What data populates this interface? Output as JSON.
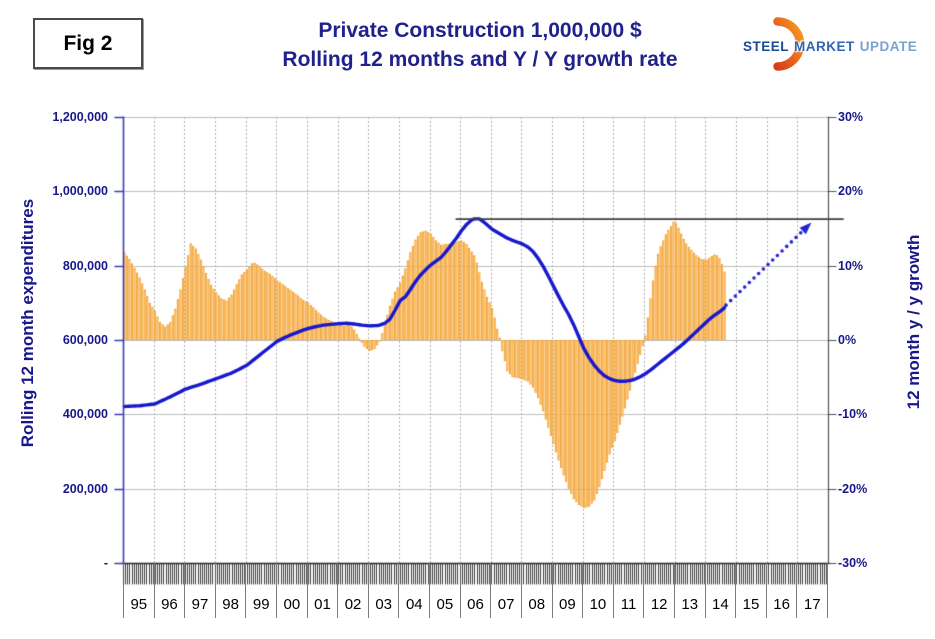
{
  "fig_label": "Fig 2",
  "title": {
    "line1": "Private Construction 1,000,000 $",
    "line2": "Rolling 12 months and Y / Y growth rate"
  },
  "logo": {
    "word1": "STEEL",
    "word2": "MARKET",
    "word3": "UPDATE",
    "crescent_color_top": "#f89b1d",
    "crescent_color_bottom": "#d93c1e"
  },
  "colors": {
    "title_text": "#21218E",
    "axis_text": "#18188A",
    "year_text": "#000000",
    "left_axis_line": "#3D3DB8",
    "right_axis_line": "#555555",
    "bottom_axis_line": "#222222",
    "grid_solid": "#BDBDBD",
    "grid_dashed": "#B3B3B3",
    "bar_fill": "#F09C28",
    "bar_highlight": "#FCC473",
    "line_color": "#1717CE",
    "arrow_color": "#2525CF",
    "reference_line": "#3F3F3F"
  },
  "chart_data": {
    "type": "combo",
    "title": "Private Construction 1,000,000 $ — Rolling 12 months and Y / Y growth rate",
    "left_axis": {
      "label": "Rolling 12 month expenditures",
      "ticks": [
        "1,200,000",
        "1,000,000",
        "800,000",
        "600,000",
        "400,000",
        "200,000",
        "-"
      ],
      "min": 0,
      "max": 1200000
    },
    "right_axis": {
      "label": "12 month y / y growth",
      "ticks": [
        "30%",
        "20%",
        "10%",
        "0%",
        "-10%",
        "-20%",
        "-30%"
      ],
      "min": -30,
      "max": 30
    },
    "x_axis": {
      "year_labels": [
        "95",
        "96",
        "97",
        "98",
        "99",
        "00",
        "01",
        "02",
        "03",
        "04",
        "05",
        "06",
        "07",
        "08",
        "09",
        "10",
        "11",
        "12",
        "13",
        "14",
        "15",
        "16",
        "17"
      ],
      "start_month": "1995-01",
      "data_end_month": "2014-08",
      "axis_end": "2017-12",
      "monthly_minor_ticks": true
    },
    "series": [
      {
        "name": "12 month y / y growth",
        "type": "bar",
        "axis": "right",
        "unit": "%",
        "note": "monthly values; keyframes [monthIndexFrom1995-01, percent], linear between",
        "keyframes": [
          [
            0,
            11.8
          ],
          [
            2,
            10.9
          ],
          [
            4,
            9.7
          ],
          [
            6,
            8.4
          ],
          [
            8,
            6.8
          ],
          [
            10,
            5.0
          ],
          [
            12,
            3.9
          ],
          [
            14,
            2.4
          ],
          [
            16,
            1.8
          ],
          [
            18,
            2.4
          ],
          [
            20,
            4.2
          ],
          [
            22,
            6.8
          ],
          [
            24,
            9.8
          ],
          [
            26,
            13.0
          ],
          [
            28,
            12.3
          ],
          [
            30,
            10.8
          ],
          [
            32,
            9.0
          ],
          [
            34,
            7.4
          ],
          [
            36,
            6.4
          ],
          [
            38,
            5.6
          ],
          [
            40,
            5.3
          ],
          [
            42,
            6.1
          ],
          [
            44,
            7.5
          ],
          [
            46,
            8.8
          ],
          [
            48,
            9.5
          ],
          [
            50,
            10.3
          ],
          [
            51,
            10.4
          ],
          [
            53,
            9.9
          ],
          [
            55,
            9.3
          ],
          [
            57,
            8.9
          ],
          [
            59,
            8.3
          ],
          [
            60,
            8.0
          ],
          [
            62,
            7.5
          ],
          [
            64,
            7.0
          ],
          [
            66,
            6.5
          ],
          [
            68,
            6.0
          ],
          [
            70,
            5.4
          ],
          [
            72,
            5.0
          ],
          [
            74,
            4.4
          ],
          [
            76,
            3.7
          ],
          [
            78,
            3.1
          ],
          [
            80,
            2.7
          ],
          [
            82,
            2.4
          ],
          [
            84,
            2.2
          ],
          [
            86,
            1.9
          ],
          [
            88,
            2.2
          ],
          [
            90,
            1.4
          ],
          [
            92,
            0.2
          ],
          [
            94,
            -0.9
          ],
          [
            96,
            -1.5
          ],
          [
            98,
            -1.2
          ],
          [
            100,
            -0.2
          ],
          [
            101,
            0.9
          ],
          [
            102,
            2.2
          ],
          [
            104,
            4.6
          ],
          [
            106,
            6.5
          ],
          [
            108,
            7.7
          ],
          [
            110,
            9.6
          ],
          [
            112,
            11.8
          ],
          [
            114,
            13.5
          ],
          [
            116,
            14.5
          ],
          [
            118,
            14.7
          ],
          [
            120,
            14.3
          ],
          [
            122,
            13.4
          ],
          [
            124,
            12.8
          ],
          [
            126,
            12.9
          ],
          [
            128,
            13.0
          ],
          [
            130,
            13.2
          ],
          [
            132,
            13.4
          ],
          [
            134,
            12.9
          ],
          [
            136,
            11.9
          ],
          [
            137,
            11.4
          ],
          [
            138,
            10.4
          ],
          [
            140,
            7.8
          ],
          [
            142,
            5.8
          ],
          [
            144,
            4.3
          ],
          [
            145,
            3.0
          ],
          [
            146,
            1.5
          ],
          [
            147,
            0.3
          ],
          [
            148,
            -1.5
          ],
          [
            150,
            -4.2
          ],
          [
            152,
            -5.0
          ],
          [
            154,
            -5.1
          ],
          [
            156,
            -5.3
          ],
          [
            158,
            -5.6
          ],
          [
            160,
            -6.4
          ],
          [
            162,
            -7.8
          ],
          [
            164,
            -9.6
          ],
          [
            166,
            -11.8
          ],
          [
            168,
            -14.0
          ],
          [
            170,
            -16.2
          ],
          [
            172,
            -18.2
          ],
          [
            174,
            -20.0
          ],
          [
            176,
            -21.4
          ],
          [
            178,
            -22.2
          ],
          [
            180,
            -22.6
          ],
          [
            182,
            -22.4
          ],
          [
            184,
            -21.6
          ],
          [
            186,
            -19.8
          ],
          [
            188,
            -17.6
          ],
          [
            190,
            -15.4
          ],
          [
            192,
            -13.6
          ],
          [
            194,
            -11.4
          ],
          [
            196,
            -9.2
          ],
          [
            198,
            -6.8
          ],
          [
            200,
            -4.4
          ],
          [
            202,
            -2.0
          ],
          [
            203,
            -0.8
          ],
          [
            204,
            0.6
          ],
          [
            205,
            3.0
          ],
          [
            206,
            5.6
          ],
          [
            207,
            8.0
          ],
          [
            208,
            10.0
          ],
          [
            209,
            11.6
          ],
          [
            210,
            12.6
          ],
          [
            211,
            13.4
          ],
          [
            212,
            14.2
          ],
          [
            213,
            14.8
          ],
          [
            214,
            15.3
          ],
          [
            215,
            15.9
          ],
          [
            216,
            15.7
          ],
          [
            217,
            15.1
          ],
          [
            218,
            14.3
          ],
          [
            219,
            13.6
          ],
          [
            220,
            13.0
          ],
          [
            221,
            12.5
          ],
          [
            222,
            12.1
          ],
          [
            224,
            11.4
          ],
          [
            226,
            10.9
          ],
          [
            228,
            10.8
          ],
          [
            230,
            11.3
          ],
          [
            231,
            11.5
          ],
          [
            232,
            11.4
          ],
          [
            233,
            11.0
          ],
          [
            234,
            10.2
          ],
          [
            235,
            9.2
          ]
        ]
      },
      {
        "name": "Rolling 12 month expenditures",
        "type": "line",
        "axis": "left",
        "unit": "thousand $",
        "note": "monthly values; keyframes [monthIndexFrom1995-01, thousands], linear between",
        "keyframes": [
          [
            0,
            421
          ],
          [
            6,
            423
          ],
          [
            12,
            428
          ],
          [
            18,
            447
          ],
          [
            24,
            468
          ],
          [
            30,
            481
          ],
          [
            36,
            496
          ],
          [
            42,
            511
          ],
          [
            48,
            532
          ],
          [
            54,
            565
          ],
          [
            59,
            592
          ],
          [
            60,
            597
          ],
          [
            63,
            607
          ],
          [
            66,
            616
          ],
          [
            69,
            624
          ],
          [
            72,
            631
          ],
          [
            75,
            636
          ],
          [
            78,
            640
          ],
          [
            81,
            642
          ],
          [
            84,
            644
          ],
          [
            87,
            645
          ],
          [
            90,
            643
          ],
          [
            93,
            640
          ],
          [
            96,
            638
          ],
          [
            99,
            639
          ],
          [
            100,
            640
          ],
          [
            102,
            645
          ],
          [
            104,
            656
          ],
          [
            106,
            680
          ],
          [
            108,
            706
          ],
          [
            110,
            716
          ],
          [
            112,
            736
          ],
          [
            114,
            757
          ],
          [
            116,
            775
          ],
          [
            118,
            789
          ],
          [
            120,
            802
          ],
          [
            122,
            812
          ],
          [
            124,
            822
          ],
          [
            126,
            838
          ],
          [
            128,
            856
          ],
          [
            130,
            874
          ],
          [
            132,
            894
          ],
          [
            134,
            911
          ],
          [
            136,
            923
          ],
          [
            137,
            926
          ],
          [
            139,
            926
          ],
          [
            141,
            916
          ],
          [
            143,
            904
          ],
          [
            144,
            898
          ],
          [
            146,
            890
          ],
          [
            148,
            882
          ],
          [
            150,
            874
          ],
          [
            152,
            868
          ],
          [
            154,
            863
          ],
          [
            156,
            858
          ],
          [
            158,
            850
          ],
          [
            160,
            838
          ],
          [
            162,
            820
          ],
          [
            164,
            798
          ],
          [
            166,
            772
          ],
          [
            168,
            745
          ],
          [
            170,
            718
          ],
          [
            172,
            692
          ],
          [
            174,
            668
          ],
          [
            176,
            640
          ],
          [
            178,
            608
          ],
          [
            180,
            576
          ],
          [
            182,
            552
          ],
          [
            184,
            532
          ],
          [
            186,
            516
          ],
          [
            188,
            504
          ],
          [
            190,
            496
          ],
          [
            192,
            491
          ],
          [
            194,
            489
          ],
          [
            196,
            489
          ],
          [
            198,
            491
          ],
          [
            200,
            495
          ],
          [
            202,
            501
          ],
          [
            204,
            509
          ],
          [
            206,
            519
          ],
          [
            208,
            530
          ],
          [
            210,
            541
          ],
          [
            212,
            552
          ],
          [
            214,
            563
          ],
          [
            216,
            574
          ],
          [
            218,
            585
          ],
          [
            220,
            597
          ],
          [
            222,
            610
          ],
          [
            224,
            623
          ],
          [
            226,
            636
          ],
          [
            228,
            649
          ],
          [
            230,
            661
          ],
          [
            232,
            671
          ],
          [
            234,
            681
          ],
          [
            235,
            687
          ]
        ]
      }
    ],
    "reference_line": {
      "value_thousands": 925,
      "t_start": 130,
      "x_start_month": "2005-11",
      "extends_past_right_axis": true
    },
    "projection_arrow": {
      "style": "dotted",
      "from": {
        "month": "2014-08",
        "t": 235,
        "value_thousands": 690
      },
      "to": {
        "month": "2017-06",
        "t": 269,
        "value_thousands": 916
      }
    },
    "grid": {
      "horizontal": "solid at each 200,000",
      "vertical": "dashed at each year boundary"
    },
    "legend_position": "none"
  }
}
